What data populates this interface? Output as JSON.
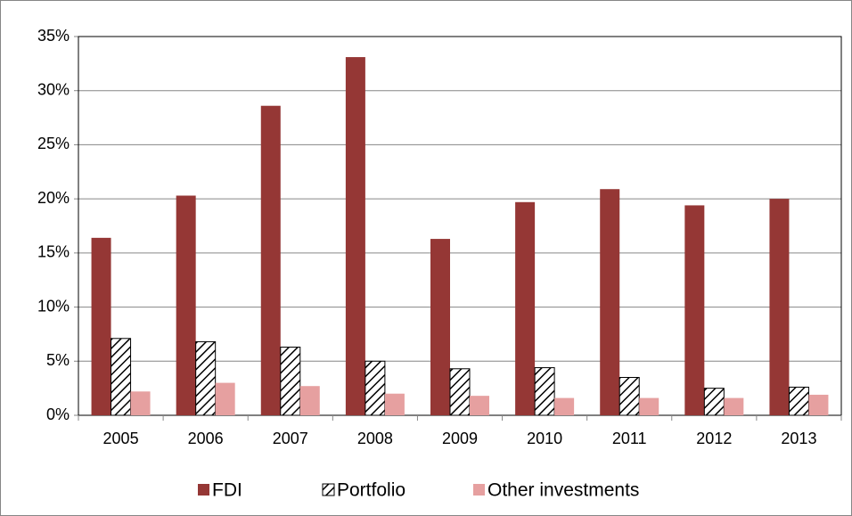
{
  "chart_data": {
    "type": "bar",
    "categories": [
      "2005",
      "2006",
      "2007",
      "2008",
      "2009",
      "2010",
      "2011",
      "2012",
      "2013"
    ],
    "series": [
      {
        "name": "FDI",
        "color": "#953735",
        "values": [
          16.4,
          20.3,
          28.6,
          33.1,
          16.3,
          19.7,
          20.9,
          19.4,
          20.0
        ]
      },
      {
        "name": "Portfolio",
        "color": "#000000",
        "pattern": "hatch",
        "values": [
          7.1,
          6.8,
          6.3,
          5.0,
          4.3,
          4.4,
          3.5,
          2.5,
          2.6
        ]
      },
      {
        "name": "Other investments",
        "color": "#e6a0a0",
        "values": [
          2.2,
          3.0,
          2.7,
          2.0,
          1.8,
          1.6,
          1.6,
          1.6,
          1.9
        ]
      }
    ],
    "ylim": [
      0,
      35
    ],
    "yticks": [
      {
        "value": 0,
        "label": "0%"
      },
      {
        "value": 5,
        "label": "5%"
      },
      {
        "value": 10,
        "label": "10%"
      },
      {
        "value": 15,
        "label": "15%"
      },
      {
        "value": 20,
        "label": "20%"
      },
      {
        "value": 25,
        "label": "25%"
      },
      {
        "value": 30,
        "label": "30%"
      },
      {
        "value": 35,
        "label": "35%"
      }
    ],
    "grid": true,
    "legend": "bottom"
  }
}
